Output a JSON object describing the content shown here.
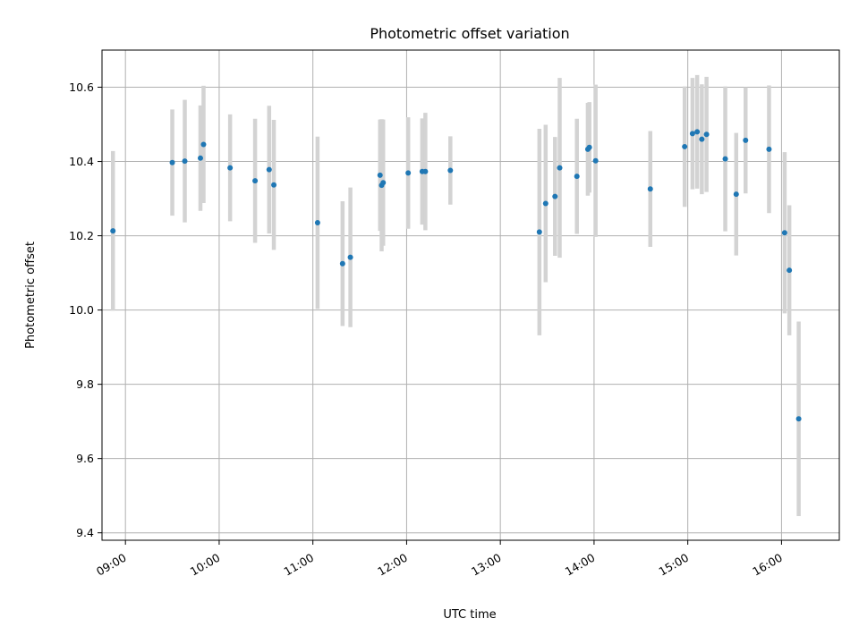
{
  "chart_data": {
    "type": "scatter",
    "title": "Photometric offset variation",
    "xlabel": "UTC time",
    "ylabel": "Photometric offset",
    "xlim": [
      "08:45",
      "16:37"
    ],
    "ylim": [
      9.38,
      10.7
    ],
    "x_ticks": [
      "09:00",
      "10:00",
      "11:00",
      "12:00",
      "13:00",
      "14:00",
      "15:00",
      "16:00"
    ],
    "y_ticks": [
      "9.4",
      "9.6",
      "9.8",
      "10.0",
      "10.2",
      "10.4",
      "10.6"
    ],
    "grid": true,
    "error_bars": true,
    "colors": {
      "points": "#1f77b4",
      "error_bars": "#d3d3d3",
      "grid": "#b0b0b0"
    },
    "series": [
      {
        "points": [
          {
            "x": "08:52",
            "y": 10.213,
            "err": 0.215
          },
          {
            "x": "09:30",
            "y": 10.397,
            "err": 0.143
          },
          {
            "x": "09:38",
            "y": 10.401,
            "err": 0.165
          },
          {
            "x": "09:48",
            "y": 10.409,
            "err": 0.142
          },
          {
            "x": "09:50",
            "y": 10.446,
            "err": 0.158
          },
          {
            "x": "10:07",
            "y": 10.383,
            "err": 0.144
          },
          {
            "x": "10:23",
            "y": 10.348,
            "err": 0.167
          },
          {
            "x": "10:32",
            "y": 10.378,
            "err": 0.172
          },
          {
            "x": "10:35",
            "y": 10.337,
            "err": 0.175
          },
          {
            "x": "11:03",
            "y": 10.235,
            "err": 0.232
          },
          {
            "x": "11:19",
            "y": 10.125,
            "err": 0.168
          },
          {
            "x": "11:24",
            "y": 10.142,
            "err": 0.188
          },
          {
            "x": "11:43",
            "y": 10.363,
            "err": 0.15
          },
          {
            "x": "11:44",
            "y": 10.336,
            "err": 0.178
          },
          {
            "x": "11:45",
            "y": 10.343,
            "err": 0.17
          },
          {
            "x": "12:01",
            "y": 10.369,
            "err": 0.15
          },
          {
            "x": "12:10",
            "y": 10.373,
            "err": 0.143
          },
          {
            "x": "12:12",
            "y": 10.373,
            "err": 0.158
          },
          {
            "x": "12:28",
            "y": 10.376,
            "err": 0.092
          },
          {
            "x": "13:25",
            "y": 10.21,
            "err": 0.278
          },
          {
            "x": "13:29",
            "y": 10.287,
            "err": 0.212
          },
          {
            "x": "13:35",
            "y": 10.306,
            "err": 0.16
          },
          {
            "x": "13:38",
            "y": 10.383,
            "err": 0.242
          },
          {
            "x": "13:49",
            "y": 10.36,
            "err": 0.155
          },
          {
            "x": "13:56",
            "y": 10.433,
            "err": 0.125
          },
          {
            "x": "13:57",
            "y": 10.438,
            "err": 0.122
          },
          {
            "x": "14:01",
            "y": 10.402,
            "err": 0.205
          },
          {
            "x": "14:36",
            "y": 10.326,
            "err": 0.156
          },
          {
            "x": "14:58",
            "y": 10.44,
            "err": 0.162
          },
          {
            "x": "15:03",
            "y": 10.475,
            "err": 0.15
          },
          {
            "x": "15:06",
            "y": 10.48,
            "err": 0.153
          },
          {
            "x": "15:09",
            "y": 10.46,
            "err": 0.148
          },
          {
            "x": "15:12",
            "y": 10.473,
            "err": 0.155
          },
          {
            "x": "15:24",
            "y": 10.407,
            "err": 0.195
          },
          {
            "x": "15:31",
            "y": 10.312,
            "err": 0.165
          },
          {
            "x": "15:37",
            "y": 10.457,
            "err": 0.143
          },
          {
            "x": "15:52",
            "y": 10.433,
            "err": 0.172
          },
          {
            "x": "16:02",
            "y": 10.208,
            "err": 0.217
          },
          {
            "x": "16:05",
            "y": 10.107,
            "err": 0.175
          },
          {
            "x": "16:11",
            "y": 9.707,
            "err": 0.262
          }
        ]
      }
    ]
  }
}
